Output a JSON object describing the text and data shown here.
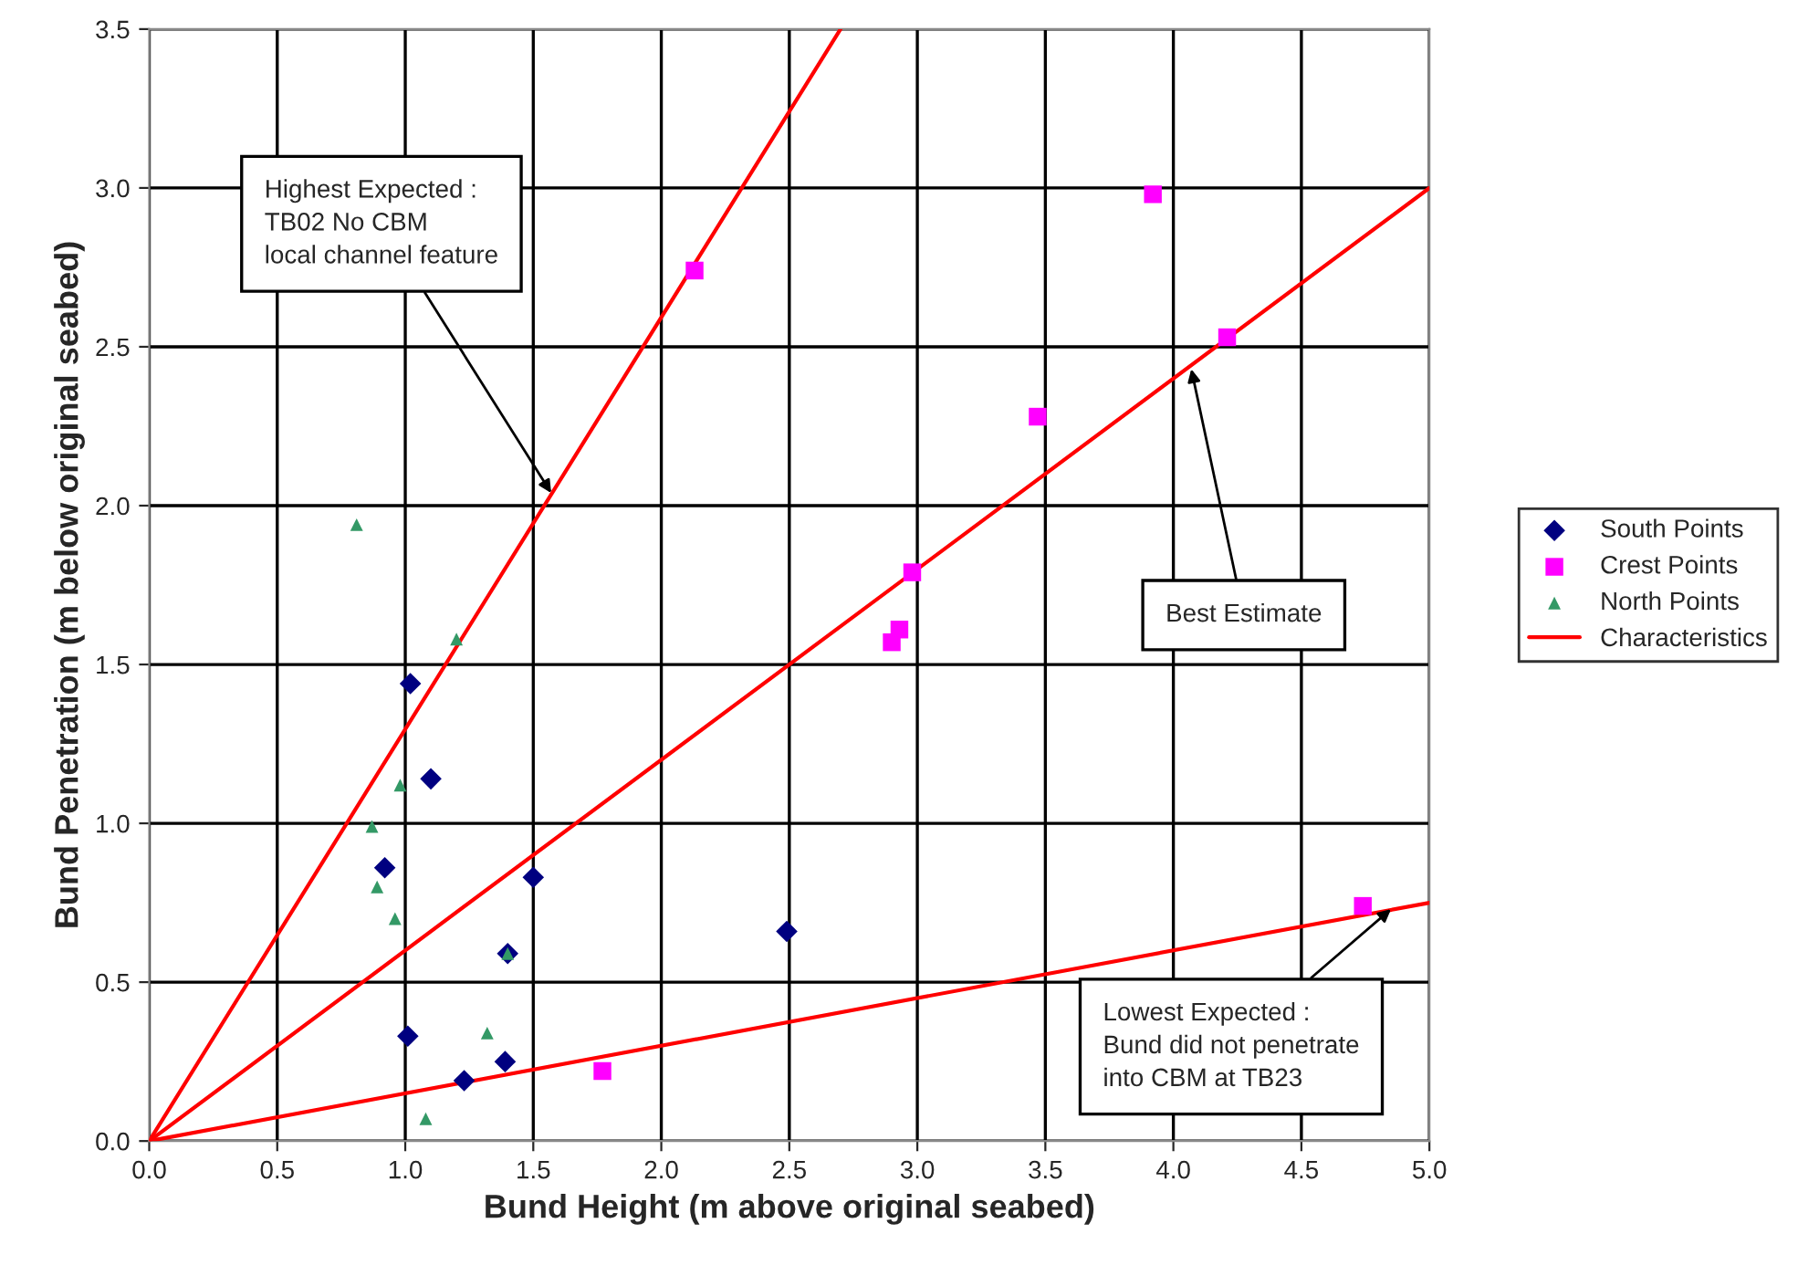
{
  "chart_data": {
    "type": "scatter",
    "xlabel": "Bund Height (m above original seabed)",
    "ylabel": "Bund Penetration (m below original seabed)",
    "xlim": [
      0,
      5
    ],
    "ylim": [
      0,
      3.5
    ],
    "xticks": [
      {
        "value": 0,
        "label": "0.0"
      },
      {
        "value": 0.5,
        "label": "0.5"
      },
      {
        "value": 1,
        "label": "1.0"
      },
      {
        "value": 1.5,
        "label": "1.5"
      },
      {
        "value": 2,
        "label": "2.0"
      },
      {
        "value": 2.5,
        "label": "2.5"
      },
      {
        "value": 3,
        "label": "3.0"
      },
      {
        "value": 3.5,
        "label": "3.5"
      },
      {
        "value": 4,
        "label": "4.0"
      },
      {
        "value": 4.5,
        "label": "4.5"
      },
      {
        "value": 5,
        "label": "5.0"
      }
    ],
    "yticks": [
      {
        "value": 0,
        "label": "0.0"
      },
      {
        "value": 0.5,
        "label": "0.5"
      },
      {
        "value": 1,
        "label": "1.0"
      },
      {
        "value": 1.5,
        "label": "1.5"
      },
      {
        "value": 2,
        "label": "2.0"
      },
      {
        "value": 2.5,
        "label": "2.5"
      },
      {
        "value": 3,
        "label": "3.0"
      },
      {
        "value": 3.5,
        "label": "3.5"
      }
    ],
    "grid": true,
    "legend": "right",
    "series": [
      {
        "name": "South Points",
        "color": "#000080",
        "marker": "diamond",
        "x": [
          1.02,
          1.1,
          0.92,
          1.5,
          2.49,
          1.4,
          1.01,
          1.39,
          1.23
        ],
        "values": [
          1.44,
          1.14,
          0.86,
          0.83,
          0.66,
          0.59,
          0.33,
          0.25,
          0.19
        ]
      },
      {
        "name": "Crest Points",
        "color": "#ff00ff",
        "marker": "square",
        "x": [
          2.13,
          3.92,
          4.21,
          3.47,
          2.98,
          2.93,
          2.9,
          1.77,
          4.74
        ],
        "values": [
          2.74,
          2.98,
          2.53,
          2.28,
          1.79,
          1.61,
          1.57,
          0.22,
          0.74
        ]
      },
      {
        "name": "North Points",
        "color": "#339966",
        "marker": "triangle",
        "x": [
          0.81,
          1.2,
          0.98,
          0.87,
          0.89,
          0.96,
          1.4,
          1.32,
          1.08
        ],
        "values": [
          1.94,
          1.58,
          1.12,
          0.99,
          0.8,
          0.7,
          0.59,
          0.34,
          0.07
        ]
      },
      {
        "name": "Characteristics",
        "type": "line",
        "color": "#ff0000",
        "marker": "none",
        "x": [
          0,
          2.7
        ],
        "values": [
          0,
          3.5
        ]
      },
      {
        "type": "line",
        "color": "#ff0000",
        "marker": "none",
        "x": [
          0,
          5
        ],
        "values": [
          0,
          3
        ]
      },
      {
        "type": "line",
        "color": "#ff0000",
        "marker": "none",
        "x": [
          0,
          5
        ],
        "values": [
          0,
          0.75
        ]
      }
    ],
    "annotations": [
      {
        "text": "Highest Expected :\nTB02 No CBM\nlocal channel feature",
        "x": 1.57,
        "y": 2.04
      },
      {
        "text": "Best Estimate",
        "x": 4.07,
        "y": 2.43
      },
      {
        "text": "Lowest Expected :\nBund did not penetrate\ninto CBM at TB23",
        "x": 4.85,
        "y": 0.73
      }
    ]
  }
}
